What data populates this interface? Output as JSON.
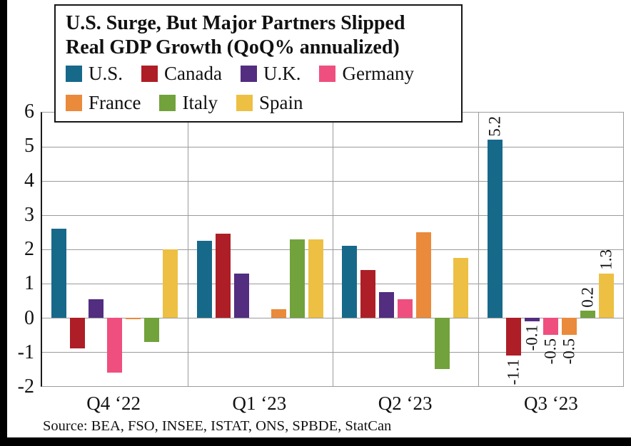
{
  "chart_data": {
    "type": "bar",
    "title": "U.S. Surge, But Major Partners Slipped",
    "subtitle": "Real GDP Growth (QoQ% annualized)",
    "source": "Source: BEA, FSO, INSEE, ISTAT, ONS, SPBDE, StatCan",
    "categories": [
      "Q4 ‘22",
      "Q1 ‘23",
      "Q2 ‘23",
      "Q3 ‘23"
    ],
    "ylim": [
      -2,
      6
    ],
    "yticks": [
      6,
      5,
      4,
      3,
      2,
      1,
      0,
      -1,
      -2
    ],
    "grid": true,
    "legend_position": "inside-title-box-top-left",
    "legend_row_break_after": 4,
    "value_labels_category_index": 3,
    "series": [
      {
        "name": "U.S.",
        "color": "#17698a",
        "values": [
          2.6,
          2.25,
          2.1,
          5.2
        ]
      },
      {
        "name": "Canada",
        "color": "#ae1e27",
        "values": [
          -0.9,
          2.45,
          1.4,
          -1.1
        ]
      },
      {
        "name": "U.K.",
        "color": "#522d80",
        "values": [
          0.55,
          1.3,
          0.75,
          -0.1
        ]
      },
      {
        "name": "Germany",
        "color": "#ef4f7e",
        "values": [
          -1.6,
          0,
          0.55,
          -0.5
        ]
      },
      {
        "name": "France",
        "color": "#ea8a3b",
        "values": [
          -0.05,
          0.25,
          2.5,
          -0.5
        ]
      },
      {
        "name": "Italy",
        "color": "#72a23c",
        "values": [
          -0.7,
          2.3,
          -1.5,
          0.2
        ]
      },
      {
        "name": "Spain",
        "color": "#edc043",
        "values": [
          2.0,
          2.3,
          1.75,
          1.3
        ]
      }
    ]
  }
}
